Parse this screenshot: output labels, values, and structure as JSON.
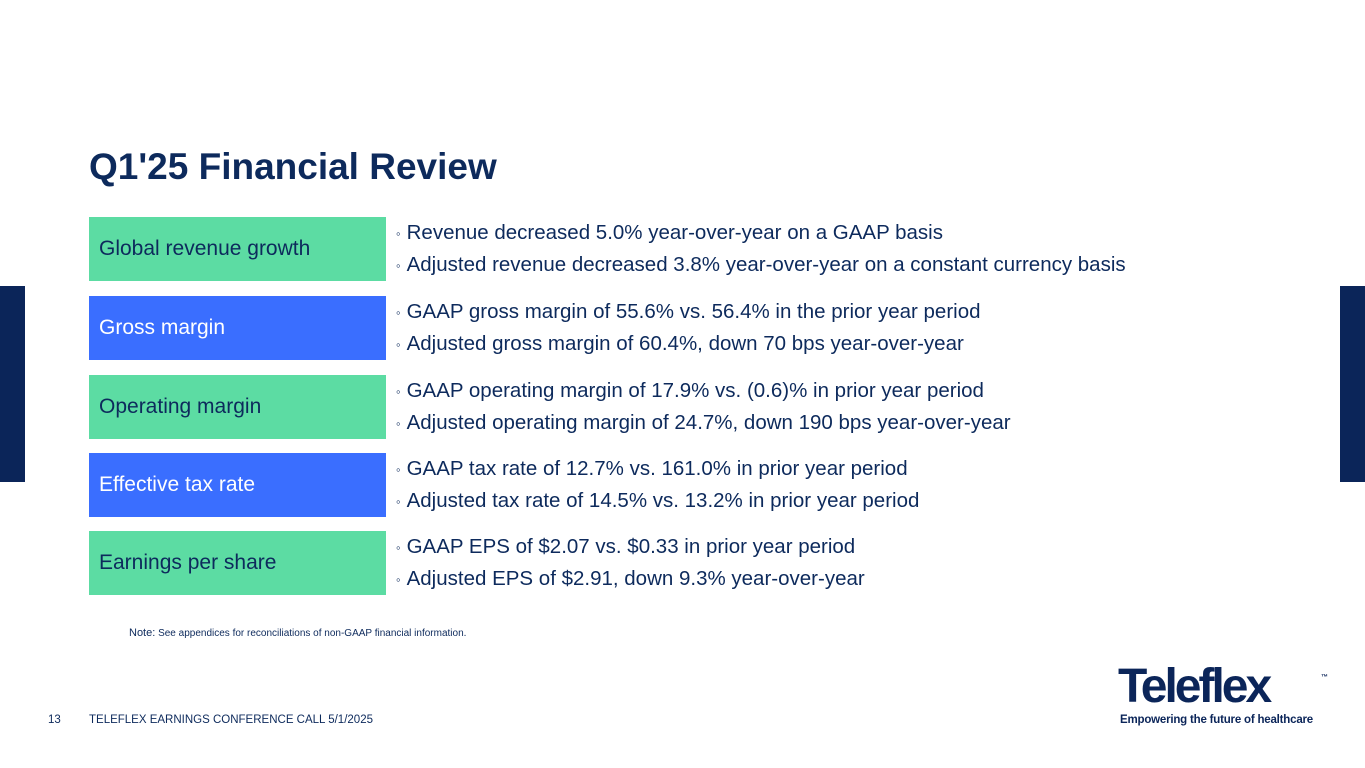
{
  "title": "Q1'25 Financial Review",
  "rows": [
    {
      "label": "Global revenue growth",
      "bullets": [
        "Revenue decreased 5.0% year-over-year on a GAAP basis",
        "Adjusted revenue decreased 3.8% year-over-year on a constant currency basis"
      ]
    },
    {
      "label": "Gross margin",
      "bullets": [
        "GAAP gross margin of 55.6% vs. 56.4% in the prior year period",
        "Adjusted gross margin of 60.4%, down 70 bps year-over-year"
      ]
    },
    {
      "label": "Operating margin",
      "bullets": [
        "GAAP operating margin of 17.9% vs. (0.6)% in prior year period",
        "Adjusted operating margin of 24.7%, down 190 bps year-over-year"
      ]
    },
    {
      "label": "Effective tax rate",
      "bullets": [
        "GAAP tax rate of 12.7% vs. 161.0% in prior year period",
        "Adjusted tax rate of 14.5% vs. 13.2% in prior year period"
      ]
    },
    {
      "label": "Earnings per share",
      "bullets": [
        "GAAP EPS of $2.07 vs. $0.33 in prior year period",
        "Adjusted EPS of $2.91, down 9.3% year-over-year"
      ]
    }
  ],
  "bullet_glyph": "◦",
  "note": {
    "key": "Note:",
    "text": "See appendices for reconciliations of non-GAAP financial information."
  },
  "footer": {
    "page_number": "13",
    "event": "TELEFLEX EARNINGS CONFERENCE CALL 5/1/2025"
  },
  "logo": {
    "wordmark": "Teleflex",
    "trademark": "™",
    "tagline": "Empowering the future of healthcare"
  },
  "colors": {
    "navy": "#0b2559",
    "green": "#5cdca3",
    "blue": "#3a6eff"
  }
}
